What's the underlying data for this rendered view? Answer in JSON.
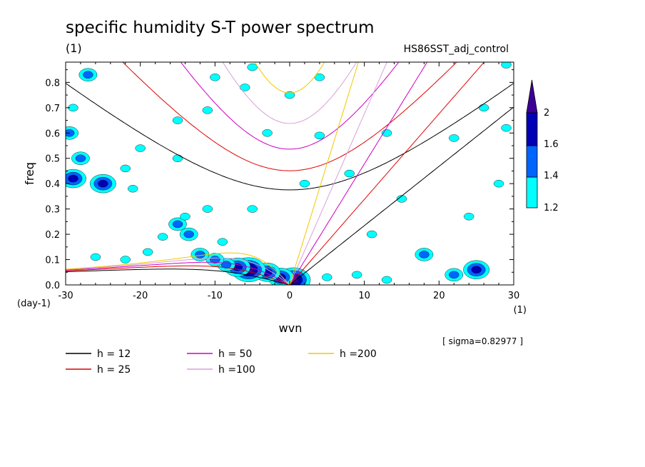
{
  "chart_data": {
    "type": "heatmap",
    "title": "specific humidity S-T power spectrum",
    "units_label": "(1)",
    "subtitle": "HS86SST_adj_control",
    "xlabel": "wvn",
    "x_units": "(1)",
    "ylabel": "freq",
    "y_units": "(day-1)",
    "xlim": [
      -30,
      30
    ],
    "ylim": [
      0,
      0.88
    ],
    "x_ticks": [
      -30,
      -20,
      -10,
      0,
      10,
      20,
      30
    ],
    "x_tick_labels": [
      "-30",
      "-20",
      "-10",
      "0",
      "10",
      "20",
      "30"
    ],
    "y_ticks": [
      0,
      0.1,
      0.2,
      0.3,
      0.4,
      0.5,
      0.6,
      0.7,
      0.8
    ],
    "y_tick_labels": [
      "0.0",
      "0.1",
      "0.2",
      "0.3",
      "0.4",
      "0.5",
      "0.6",
      "0.7",
      "0.8"
    ],
    "sigma_label": "[ sigma=0.82977 ]",
    "colorbar": {
      "levels": [
        1.2,
        1.4,
        1.6,
        2
      ],
      "level_labels": [
        "1.2",
        "1.4",
        "1.6",
        "2"
      ],
      "colors": [
        "#00ffff",
        "#0064ff",
        "#0000b4",
        "#3c0096"
      ]
    },
    "legend": [
      {
        "label": "h = 12",
        "color": "#000000",
        "h": 12
      },
      {
        "label": "h = 25",
        "color": "#e00000",
        "h": 25
      },
      {
        "label": "h = 50",
        "color": "#d000c0",
        "h": 50
      },
      {
        "label": "h =100",
        "color": "#d8a0d8",
        "h": 100
      },
      {
        "label": "h =200",
        "color": "#f0c800",
        "h": 200
      }
    ],
    "blobs": [
      {
        "x": 0.5,
        "y": 0.02,
        "level": 4
      },
      {
        "x": -1.2,
        "y": 0.03,
        "level": 3
      },
      {
        "x": -3,
        "y": 0.05,
        "level": 3
      },
      {
        "x": -5.5,
        "y": 0.06,
        "level": 4
      },
      {
        "x": -7,
        "y": 0.07,
        "level": 3
      },
      {
        "x": -8.5,
        "y": 0.08,
        "level": 2
      },
      {
        "x": -10,
        "y": 0.1,
        "level": 2
      },
      {
        "x": -12,
        "y": 0.12,
        "level": 2
      },
      {
        "x": -13.5,
        "y": 0.2,
        "level": 2
      },
      {
        "x": -15,
        "y": 0.24,
        "level": 2
      },
      {
        "x": -14,
        "y": 0.27,
        "level": 1
      },
      {
        "x": -11,
        "y": 0.3,
        "level": 1
      },
      {
        "x": -17,
        "y": 0.19,
        "level": 1
      },
      {
        "x": -9,
        "y": 0.17,
        "level": 1
      },
      {
        "x": -19,
        "y": 0.13,
        "level": 1
      },
      {
        "x": -22,
        "y": 0.1,
        "level": 1
      },
      {
        "x": -26,
        "y": 0.11,
        "level": 1
      },
      {
        "x": -25,
        "y": 0.4,
        "level": 3
      },
      {
        "x": -29,
        "y": 0.42,
        "level": 3
      },
      {
        "x": -28,
        "y": 0.5,
        "level": 2
      },
      {
        "x": -29.5,
        "y": 0.6,
        "level": 2
      },
      {
        "x": -29,
        "y": 0.7,
        "level": 1
      },
      {
        "x": -27,
        "y": 0.83,
        "level": 2
      },
      {
        "x": -22,
        "y": 0.46,
        "level": 1
      },
      {
        "x": -21,
        "y": 0.38,
        "level": 1
      },
      {
        "x": -15,
        "y": 0.5,
        "level": 1
      },
      {
        "x": -15,
        "y": 0.65,
        "level": 1
      },
      {
        "x": -11,
        "y": 0.69,
        "level": 1
      },
      {
        "x": -10,
        "y": 0.82,
        "level": 1
      },
      {
        "x": -6,
        "y": 0.78,
        "level": 1
      },
      {
        "x": 0,
        "y": 0.75,
        "level": 1
      },
      {
        "x": -3,
        "y": 0.6,
        "level": 1
      },
      {
        "x": 4,
        "y": 0.82,
        "level": 1
      },
      {
        "x": 4,
        "y": 0.59,
        "level": 1
      },
      {
        "x": 8,
        "y": 0.44,
        "level": 1
      },
      {
        "x": 11,
        "y": 0.2,
        "level": 1
      },
      {
        "x": 15,
        "y": 0.34,
        "level": 1
      },
      {
        "x": 13,
        "y": 0.6,
        "level": 1
      },
      {
        "x": 18,
        "y": 0.12,
        "level": 2
      },
      {
        "x": 22,
        "y": 0.04,
        "level": 2
      },
      {
        "x": 25,
        "y": 0.06,
        "level": 3
      },
      {
        "x": 28,
        "y": 0.4,
        "level": 1
      },
      {
        "x": 26,
        "y": 0.7,
        "level": 1
      },
      {
        "x": 29,
        "y": 0.62,
        "level": 1
      },
      {
        "x": 22,
        "y": 0.58,
        "level": 1
      },
      {
        "x": 24,
        "y": 0.27,
        "level": 1
      },
      {
        "x": 5,
        "y": 0.03,
        "level": 1
      },
      {
        "x": 9,
        "y": 0.04,
        "level": 1
      },
      {
        "x": 13,
        "y": 0.02,
        "level": 1
      },
      {
        "x": -5,
        "y": 0.3,
        "level": 1
      },
      {
        "x": -20,
        "y": 0.54,
        "level": 1
      },
      {
        "x": 29,
        "y": 0.87,
        "level": 1
      },
      {
        "x": -5,
        "y": 0.86,
        "level": 1
      },
      {
        "x": 2,
        "y": 0.4,
        "level": 1
      }
    ]
  }
}
